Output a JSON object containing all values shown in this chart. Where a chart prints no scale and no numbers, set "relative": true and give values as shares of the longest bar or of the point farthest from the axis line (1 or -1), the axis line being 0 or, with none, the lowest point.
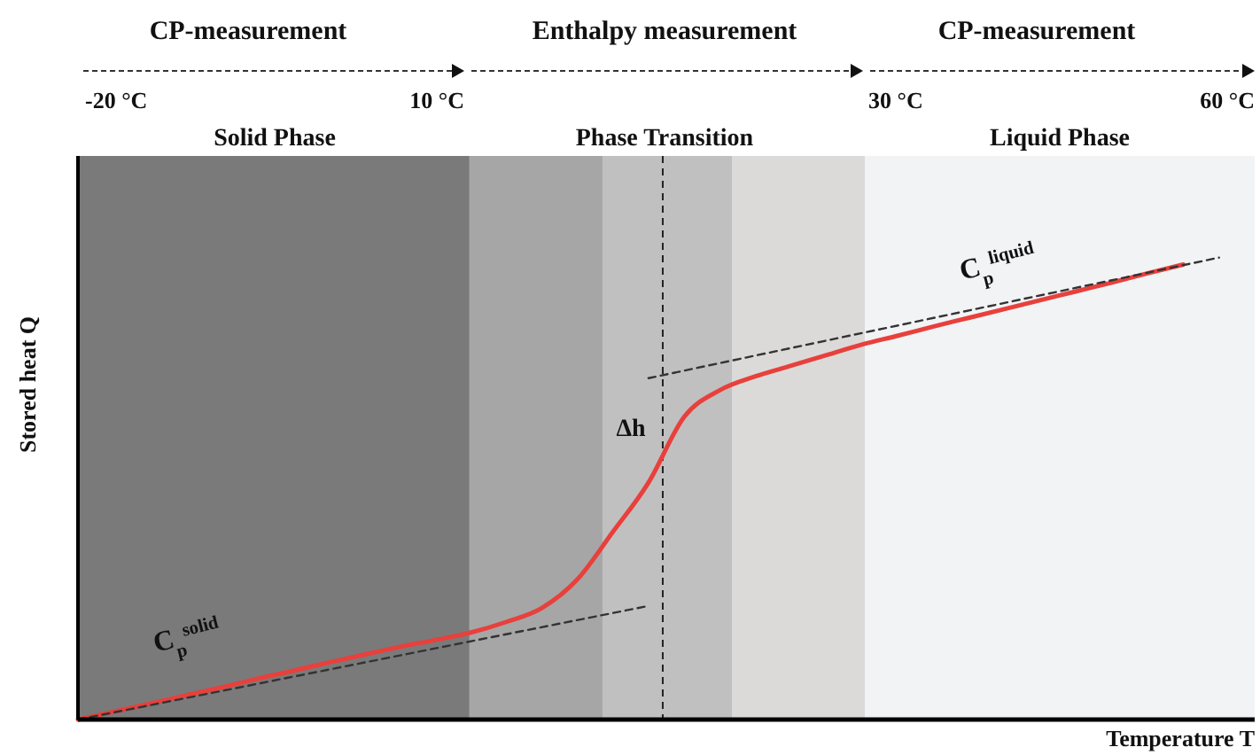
{
  "chart_data": {
    "type": "line",
    "relative": true,
    "xlabel": "Temperature T",
    "ylabel": "Stored heat Q",
    "categories": [
      null,
      null,
      null,
      null,
      null,
      null,
      null,
      null,
      null,
      null,
      null,
      null,
      null,
      null,
      null,
      null,
      null,
      null,
      null,
      null,
      null,
      null,
      null,
      null,
      null,
      null,
      null,
      null,
      null,
      null,
      null,
      null,
      null,
      null
    ],
    "series": [
      {
        "color": "#e8403c",
        "values": [
          0,
          0.017,
          0.034,
          0.052,
          0.069,
          0.088,
          0.105,
          0.123,
          0.14,
          0.157,
          0.172,
          0.188,
          0.211,
          0.241,
          0.303,
          0.406,
          0.513,
          0.655,
          0.713,
          0.743,
          0.766,
          0.789,
          0.812,
          0.831,
          0.851,
          0.87,
          0.889,
          0.908,
          0.927,
          0.946,
          0.966,
          0.985,
          null,
          null
        ]
      },
      {
        "color": "#333333",
        "line_style": "dashed",
        "values": [
          0,
          null,
          null,
          null,
          null,
          null,
          null,
          null,
          null,
          null,
          null,
          null,
          null,
          null,
          null,
          null,
          0.246,
          null,
          null,
          null,
          null,
          null,
          null,
          null,
          null,
          null,
          null,
          null,
          null,
          null,
          null,
          null,
          null,
          null
        ]
      },
      {
        "color": "#333333",
        "line_style": "dashed",
        "values": [
          null,
          null,
          null,
          null,
          null,
          null,
          null,
          null,
          null,
          null,
          null,
          null,
          null,
          null,
          null,
          null,
          0.739,
          null,
          null,
          null,
          null,
          null,
          null,
          null,
          null,
          null,
          null,
          null,
          null,
          null,
          null,
          null,
          1,
          null
        ]
      }
    ],
    "annotations": [
      "CP-measurement",
      "Enthalpy measurement",
      "CP-measurement",
      "-20 °C",
      "10 °C",
      "30 °C",
      "60 °C",
      "Solid Phase",
      "Phase Transition",
      "Liquid Phase",
      "Δh",
      "C$_{p}$$^{solid}$",
      "C$_{p}$$^{liquid}$"
    ],
    "marker": "none"
  }
}
